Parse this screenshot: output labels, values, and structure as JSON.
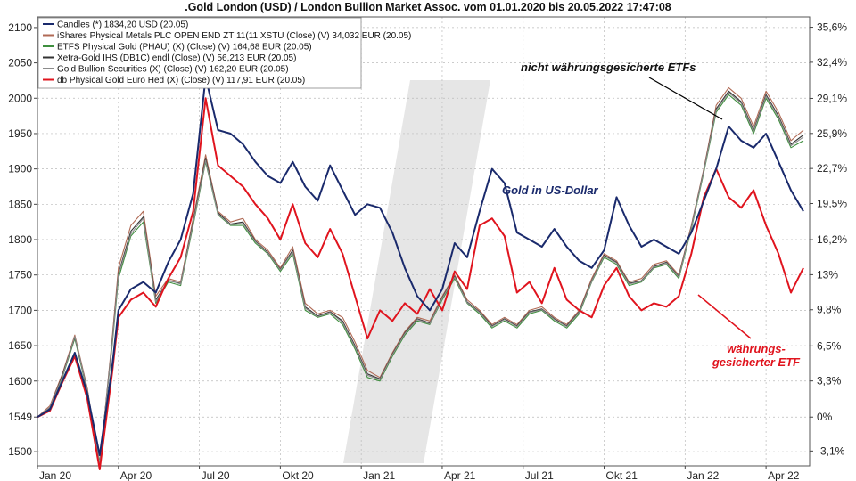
{
  "title": ".Gold London (USD) / London Bullion Market Assoc. vom 01.01.2020 bis 20.05.2022 17:47:08",
  "chart_data": {
    "type": "line",
    "title": ".Gold London (USD) / London Bullion Market Assoc. vom 01.01.2020 bis 20.05.2022 17:47:08",
    "x_tick_labels": [
      "Jan 20",
      "Apr 20",
      "Jul 20",
      "Okt 20",
      "Jan 21",
      "Apr 21",
      "Jul 21",
      "Okt 21",
      "Jan 22",
      "Apr 22"
    ],
    "x_tick_weeks": [
      0,
      13,
      26,
      39,
      52,
      65,
      78,
      91,
      104,
      117
    ],
    "x_range_weeks": [
      0,
      124
    ],
    "y_left_ticks": [
      1500,
      1549,
      1600,
      1650,
      1700,
      1750,
      1800,
      1850,
      1900,
      1950,
      2000,
      2050,
      2100
    ],
    "y_left_range": [
      1480,
      2115
    ],
    "y_right_ticks": [
      "35,6%",
      "32,4%",
      "29,1%",
      "25,9%",
      "22,7%",
      "19,5%",
      "16,2%",
      "13%",
      "9,8%",
      "6,5%",
      "3,3%",
      "0%",
      "-3,1%"
    ],
    "y_right_tick_values": [
      35.6,
      32.4,
      29.1,
      25.9,
      22.7,
      19.5,
      16.2,
      13,
      9.8,
      6.5,
      3.3,
      0,
      -3.1
    ],
    "legend": [
      {
        "label": "Candles (*) 1834,20 USD (20.05)",
        "color": "#1a2a6c"
      },
      {
        "label": "iShares Physical Metals PLC OPEN END ZT 11(11 XSTU (Close) (V) 34,032 EUR (20.05)",
        "color": "#b06a55"
      },
      {
        "label": "ETFS Physical Gold (PHAU) (X) (Close) (V) 164,68 EUR (20.05)",
        "color": "#3f8f3f"
      },
      {
        "label": "Xetra-Gold IHS (DB1C) endl (Close) (V) 56,213 EUR (20.05)",
        "color": "#333333"
      },
      {
        "label": "Gold Bullion Securities (X) (Close) (V) 162,20 EUR (20.05)",
        "color": "#8c8c8c"
      },
      {
        "label": "db Physical Gold Euro Hed (X) (Close) (V) 117,91 EUR (20.05)",
        "color": "#e0141e"
      }
    ],
    "annotations": {
      "etf_unhedged": "nicht währungsgesicherte ETFs",
      "gold_usd": "Gold in US-Dollar",
      "hedged_line1": "währungs-",
      "hedged_line2": "gesicherter ETF"
    },
    "series": [
      {
        "name": "Candles (*) 1834,20 USD (20.05)",
        "color": "#1a2a6c",
        "x": [
          0,
          2,
          4,
          6,
          8,
          10,
          12,
          13,
          15,
          17,
          19,
          21,
          23,
          25,
          27,
          29,
          31,
          33,
          35,
          37,
          39,
          41,
          43,
          45,
          47,
          49,
          51,
          53,
          55,
          57,
          59,
          61,
          63,
          65,
          67,
          69,
          71,
          73,
          75,
          77,
          79,
          81,
          83,
          85,
          87,
          89,
          91,
          93,
          95,
          97,
          99,
          101,
          103,
          105,
          107,
          109,
          111,
          113,
          115,
          117,
          119,
          121,
          123
        ],
        "values": [
          1549,
          1560,
          1600,
          1640,
          1582,
          1495,
          1620,
          1700,
          1730,
          1740,
          1725,
          1768,
          1800,
          1865,
          2030,
          1955,
          1950,
          1935,
          1910,
          1890,
          1880,
          1910,
          1875,
          1855,
          1905,
          1870,
          1835,
          1850,
          1845,
          1810,
          1760,
          1720,
          1700,
          1730,
          1795,
          1775,
          1840,
          1900,
          1880,
          1810,
          1800,
          1790,
          1815,
          1790,
          1770,
          1760,
          1785,
          1860,
          1820,
          1790,
          1800,
          1790,
          1780,
          1810,
          1855,
          1900,
          1960,
          1940,
          1930,
          1950,
          1910,
          1870,
          1840
        ]
      },
      {
        "name": "iShares Physical Metals PLC OPEN END ZT 11(11 XSTU (Close) (V) 34,032 EUR (20.05)",
        "color": "#b06a55",
        "x": [
          0,
          2,
          4,
          6,
          8,
          10,
          12,
          13,
          15,
          17,
          19,
          21,
          23,
          25,
          27,
          29,
          31,
          33,
          35,
          37,
          39,
          41,
          43,
          45,
          47,
          49,
          51,
          53,
          55,
          57,
          59,
          61,
          63,
          65,
          67,
          69,
          71,
          73,
          75,
          77,
          79,
          81,
          83,
          85,
          87,
          89,
          91,
          93,
          95,
          97,
          99,
          101,
          103,
          105,
          107,
          109,
          111,
          113,
          115,
          117,
          119,
          121,
          123
        ],
        "values": [
          1549,
          1565,
          1610,
          1665,
          1590,
          1480,
          1660,
          1760,
          1820,
          1840,
          1720,
          1745,
          1740,
          1830,
          1920,
          1840,
          1825,
          1830,
          1800,
          1785,
          1760,
          1790,
          1710,
          1695,
          1700,
          1690,
          1655,
          1615,
          1605,
          1640,
          1670,
          1690,
          1685,
          1720,
          1750,
          1715,
          1700,
          1680,
          1690,
          1680,
          1700,
          1705,
          1690,
          1680,
          1700,
          1745,
          1780,
          1770,
          1740,
          1745,
          1765,
          1770,
          1750,
          1820,
          1900,
          1990,
          2015,
          2000,
          1960,
          2010,
          1980,
          1940,
          1955
        ]
      },
      {
        "name": "ETFS Physical Gold (PHAU) (X) (Close) (V) 164,68 EUR (20.05)",
        "color": "#3f8f3f",
        "x": [
          0,
          2,
          4,
          6,
          8,
          10,
          12,
          13,
          15,
          17,
          19,
          21,
          23,
          25,
          27,
          29,
          31,
          33,
          35,
          37,
          39,
          41,
          43,
          45,
          47,
          49,
          51,
          53,
          55,
          57,
          59,
          61,
          63,
          65,
          67,
          69,
          71,
          73,
          75,
          77,
          79,
          81,
          83,
          85,
          87,
          89,
          91,
          93,
          95,
          97,
          99,
          101,
          103,
          105,
          107,
          109,
          111,
          113,
          115,
          117,
          119,
          121,
          123
        ],
        "values": [
          1549,
          1560,
          1605,
          1660,
          1585,
          1485,
          1650,
          1745,
          1805,
          1825,
          1710,
          1740,
          1735,
          1820,
          1910,
          1835,
          1820,
          1820,
          1795,
          1780,
          1755,
          1780,
          1700,
          1690,
          1695,
          1680,
          1645,
          1605,
          1600,
          1635,
          1665,
          1685,
          1680,
          1715,
          1745,
          1710,
          1695,
          1675,
          1685,
          1675,
          1695,
          1700,
          1685,
          1675,
          1695,
          1740,
          1775,
          1765,
          1735,
          1740,
          1760,
          1765,
          1745,
          1815,
          1895,
          1980,
          2005,
          1990,
          1950,
          2000,
          1970,
          1930,
          1940
        ]
      },
      {
        "name": "Xetra-Gold IHS (DB1C) endl (Close) (V) 56,213 EUR (20.05)",
        "color": "#333333",
        "x": [
          0,
          2,
          4,
          6,
          8,
          10,
          12,
          13,
          15,
          17,
          19,
          21,
          23,
          25,
          27,
          29,
          31,
          33,
          35,
          37,
          39,
          41,
          43,
          45,
          47,
          49,
          51,
          53,
          55,
          57,
          59,
          61,
          63,
          65,
          67,
          69,
          71,
          73,
          75,
          77,
          79,
          81,
          83,
          85,
          87,
          89,
          91,
          93,
          95,
          97,
          99,
          101,
          103,
          105,
          107,
          109,
          111,
          113,
          115,
          117,
          119,
          121,
          123
        ],
        "values": [
          1549,
          1562,
          1608,
          1662,
          1588,
          1482,
          1655,
          1752,
          1812,
          1832,
          1715,
          1742,
          1738,
          1825,
          1915,
          1838,
          1822,
          1825,
          1798,
          1782,
          1758,
          1785,
          1705,
          1692,
          1698,
          1685,
          1650,
          1610,
          1603,
          1638,
          1668,
          1688,
          1682,
          1718,
          1748,
          1712,
          1698,
          1678,
          1688,
          1678,
          1698,
          1702,
          1688,
          1678,
          1698,
          1742,
          1778,
          1768,
          1738,
          1742,
          1762,
          1768,
          1748,
          1818,
          1898,
          1985,
          2010,
          1995,
          1955,
          2005,
          1975,
          1935,
          1948
        ]
      },
      {
        "name": "Gold Bullion Securities (X) (Close) (V) 162,20 EUR (20.05)",
        "color": "#8c8c8c",
        "x": [
          0,
          2,
          4,
          6,
          8,
          10,
          12,
          13,
          15,
          17,
          19,
          21,
          23,
          25,
          27,
          29,
          31,
          33,
          35,
          37,
          39,
          41,
          43,
          45,
          47,
          49,
          51,
          53,
          55,
          57,
          59,
          61,
          63,
          65,
          67,
          69,
          71,
          73,
          75,
          77,
          79,
          81,
          83,
          85,
          87,
          89,
          91,
          93,
          95,
          97,
          99,
          101,
          103,
          105,
          107,
          109,
          111,
          113,
          115,
          117,
          119,
          121,
          123
        ],
        "values": [
          1549,
          1563,
          1606,
          1663,
          1587,
          1483,
          1653,
          1750,
          1808,
          1830,
          1712,
          1743,
          1737,
          1823,
          1912,
          1836,
          1821,
          1823,
          1797,
          1781,
          1757,
          1783,
          1703,
          1691,
          1697,
          1683,
          1648,
          1608,
          1602,
          1637,
          1667,
          1687,
          1681,
          1717,
          1747,
          1711,
          1697,
          1677,
          1687,
          1677,
          1697,
          1701,
          1687,
          1677,
          1697,
          1741,
          1777,
          1767,
          1737,
          1741,
          1761,
          1767,
          1747,
          1817,
          1897,
          1983,
          2008,
          1993,
          1953,
          2003,
          1973,
          1933,
          1945
        ]
      },
      {
        "name": "db Physical Gold Euro Hed (X) (Close) (V) 117,91 EUR (20.05)",
        "color": "#e0141e",
        "x": [
          0,
          2,
          4,
          6,
          8,
          10,
          12,
          13,
          15,
          17,
          19,
          21,
          23,
          25,
          27,
          29,
          31,
          33,
          35,
          37,
          39,
          41,
          43,
          45,
          47,
          49,
          51,
          53,
          55,
          57,
          59,
          61,
          63,
          65,
          67,
          69,
          71,
          73,
          75,
          77,
          79,
          81,
          83,
          85,
          87,
          89,
          91,
          93,
          95,
          97,
          99,
          101,
          103,
          105,
          107,
          109,
          111,
          113,
          115,
          117,
          119,
          121,
          123
        ],
        "values": [
          1549,
          1558,
          1598,
          1635,
          1575,
          1475,
          1612,
          1690,
          1715,
          1725,
          1705,
          1745,
          1775,
          1840,
          2000,
          1905,
          1890,
          1875,
          1850,
          1830,
          1800,
          1850,
          1795,
          1775,
          1815,
          1780,
          1720,
          1660,
          1700,
          1685,
          1710,
          1695,
          1730,
          1700,
          1755,
          1730,
          1820,
          1830,
          1805,
          1725,
          1740,
          1710,
          1760,
          1715,
          1700,
          1690,
          1735,
          1760,
          1720,
          1700,
          1710,
          1705,
          1720,
          1780,
          1860,
          1900,
          1860,
          1845,
          1870,
          1820,
          1780,
          1725,
          1760
        ]
      }
    ]
  }
}
